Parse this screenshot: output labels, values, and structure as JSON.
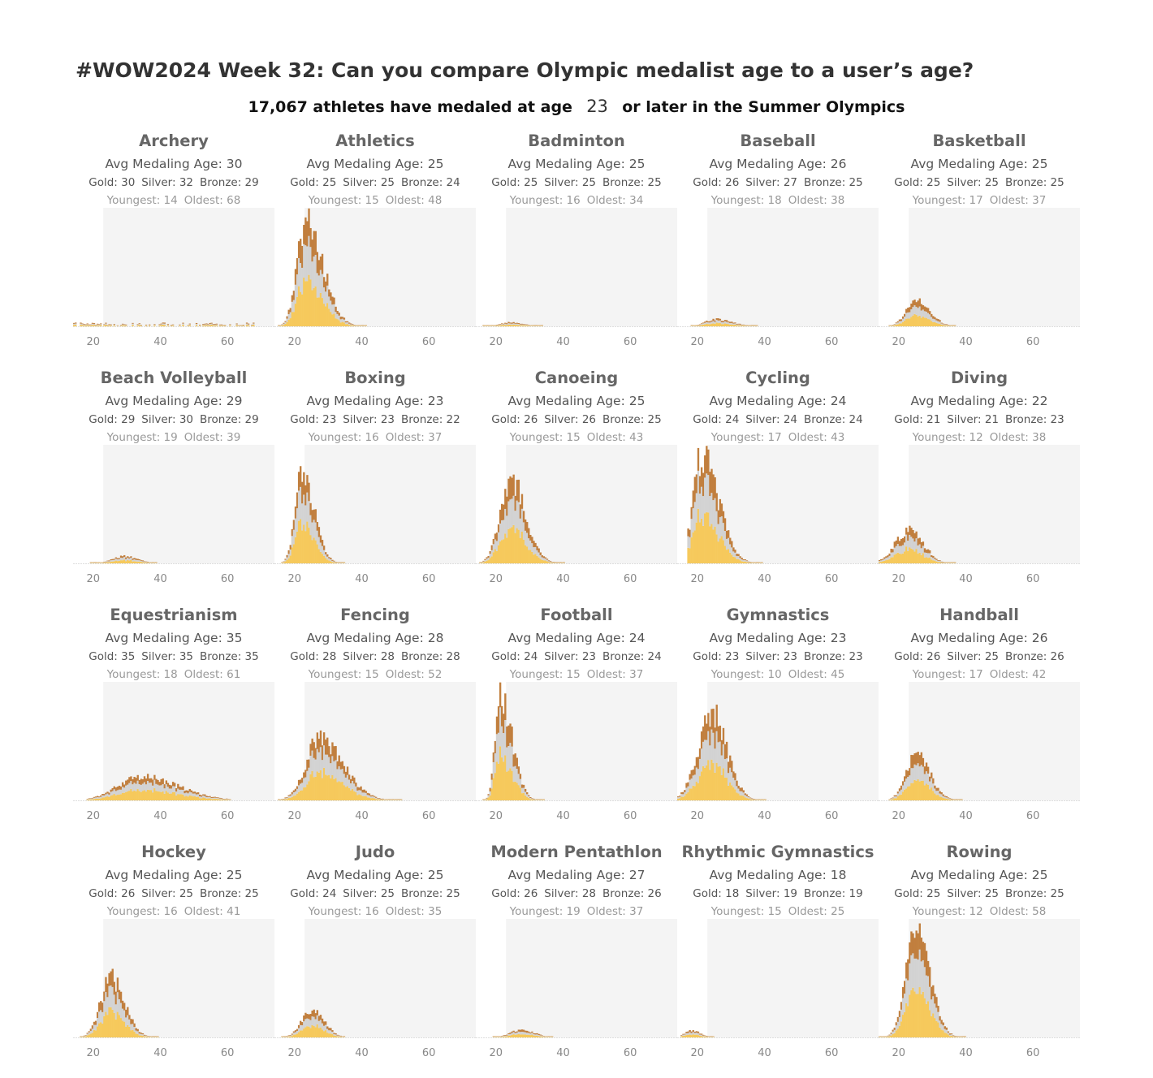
{
  "header": {
    "title": "#WOW2024 Week 32: Can you compare Olympic medalist age to a user’s age?",
    "subtitle_prefix": "17,067 athletes have medaled at age",
    "age_value": "23",
    "subtitle_suffix": "or later in the Summer Olympics"
  },
  "colors": {
    "gold": "#f6c95c",
    "silver": "#d3d3d3",
    "bronze": "#c17f3e",
    "shade": "#f4f4f4",
    "axis": "#dddddd"
  },
  "chart_data": {
    "type": "stacked-histogram-small-multiples",
    "x_axis": {
      "min": 14,
      "max": 74,
      "ticks": [
        "20",
        "40",
        "60"
      ]
    },
    "user_age": 23,
    "series": [
      "Gold",
      "Silver",
      "Bronze"
    ],
    "panels": [
      {
        "sport": "Archery",
        "avg": "Avg Medaling Age: 30",
        "gold": "Gold: 30",
        "silver": "Silver: 32",
        "bronze": "Bronze: 29",
        "youngest": "Youngest: 14",
        "oldest": "Oldest: 68",
        "shape": {
          "type": "flat",
          "from": 14,
          "to": 68,
          "level": 3
        }
      },
      {
        "sport": "Athletics",
        "avg": "Avg Medaling Age: 25",
        "gold": "Gold: 25",
        "silver": "Silver: 25",
        "bronze": "Bronze: 24",
        "youngest": "Youngest: 15",
        "oldest": "Oldest: 48",
        "shape": {
          "type": "skew",
          "peak": 23,
          "height": 135,
          "sl": 2.5,
          "sr": 5,
          "from": 15,
          "to": 48
        }
      },
      {
        "sport": "Badminton",
        "avg": "Avg Medaling Age: 25",
        "gold": "Gold: 25",
        "silver": "Silver: 25",
        "bronze": "Bronze: 25",
        "youngest": "Youngest: 16",
        "oldest": "Oldest: 34",
        "shape": {
          "type": "skew",
          "peak": 24,
          "height": 5,
          "sl": 3,
          "sr": 4,
          "from": 16,
          "to": 34
        }
      },
      {
        "sport": "Baseball",
        "avg": "Avg Medaling Age: 26",
        "gold": "Gold: 26",
        "silver": "Silver: 27",
        "bronze": "Bronze: 25",
        "youngest": "Youngest: 18",
        "oldest": "Oldest: 38",
        "shape": {
          "type": "skew",
          "peak": 25,
          "height": 9,
          "sl": 3,
          "sr": 5,
          "from": 18,
          "to": 38
        }
      },
      {
        "sport": "Basketball",
        "avg": "Avg Medaling Age: 25",
        "gold": "Gold: 25",
        "silver": "Silver: 25",
        "bronze": "Bronze: 25",
        "youngest": "Youngest: 17",
        "oldest": "Oldest: 37",
        "shape": {
          "type": "skew",
          "peak": 25,
          "height": 32,
          "sl": 3,
          "sr": 4,
          "from": 17,
          "to": 37
        }
      },
      {
        "sport": "Beach Volleyball",
        "avg": "Avg Medaling Age: 29",
        "gold": "Gold: 29",
        "silver": "Silver: 30",
        "bronze": "Bronze: 29",
        "youngest": "Youngest: 19",
        "oldest": "Oldest: 39",
        "shape": {
          "type": "skew",
          "peak": 29,
          "height": 9,
          "sl": 3.5,
          "sr": 4,
          "from": 19,
          "to": 39
        }
      },
      {
        "sport": "Boxing",
        "avg": "Avg Medaling Age: 23",
        "gold": "Gold: 23",
        "silver": "Silver: 23",
        "bronze": "Bronze: 22",
        "youngest": "Youngest: 16",
        "oldest": "Oldest: 37",
        "shape": {
          "type": "skew",
          "peak": 22,
          "height": 118,
          "sl": 2,
          "sr": 3.5,
          "from": 16,
          "to": 37
        }
      },
      {
        "sport": "Canoeing",
        "avg": "Avg Medaling Age: 25",
        "gold": "Gold: 26",
        "silver": "Silver: 26",
        "bronze": "Bronze: 25",
        "youngest": "Youngest: 15",
        "oldest": "Oldest: 43",
        "shape": {
          "type": "skew",
          "peak": 24,
          "height": 108,
          "sl": 3,
          "sr": 4.5,
          "from": 15,
          "to": 43
        }
      },
      {
        "sport": "Cycling",
        "avg": "Avg Medaling Age: 24",
        "gold": "Gold: 24",
        "silver": "Silver: 24",
        "bronze": "Bronze: 24",
        "youngest": "Youngest: 17",
        "oldest": "Oldest: 43",
        "shape": {
          "type": "skew",
          "peak": 21,
          "height": 138,
          "sl": 2.5,
          "sr": 5,
          "from": 17,
          "to": 43
        }
      },
      {
        "sport": "Diving",
        "avg": "Avg Medaling Age: 22",
        "gold": "Gold: 21",
        "silver": "Silver: 21",
        "bronze": "Bronze: 23",
        "youngest": "Youngest: 12",
        "oldest": "Oldest: 38",
        "shape": {
          "type": "skew",
          "peak": 23,
          "height": 45,
          "sl": 4,
          "sr": 4,
          "from": 14,
          "to": 38
        }
      },
      {
        "sport": "Equestrianism",
        "avg": "Avg Medaling Age: 35",
        "gold": "Gold: 35",
        "silver": "Silver: 35",
        "bronze": "Bronze: 35",
        "youngest": "Youngest: 18",
        "oldest": "Oldest: 61",
        "shape": {
          "type": "skew",
          "peak": 34,
          "height": 30,
          "sl": 7,
          "sr": 11,
          "from": 18,
          "to": 61
        }
      },
      {
        "sport": "Fencing",
        "avg": "Avg Medaling Age: 28",
        "gold": "Gold: 28",
        "silver": "Silver: 28",
        "bronze": "Bronze: 28",
        "youngest": "Youngest: 15",
        "oldest": "Oldest: 52",
        "shape": {
          "type": "skew",
          "peak": 27,
          "height": 78,
          "sl": 4,
          "sr": 7,
          "from": 15,
          "to": 52
        }
      },
      {
        "sport": "Football",
        "avg": "Avg Medaling Age: 24",
        "gold": "Gold: 24",
        "silver": "Silver: 23",
        "bronze": "Bronze: 24",
        "youngest": "Youngest: 15",
        "oldest": "Oldest: 37",
        "shape": {
          "type": "skew",
          "peak": 21,
          "height": 135,
          "sl": 1.5,
          "sr": 3.5,
          "from": 15,
          "to": 37
        }
      },
      {
        "sport": "Gymnastics",
        "avg": "Avg Medaling Age: 23",
        "gold": "Gold: 23",
        "silver": "Silver: 23",
        "bronze": "Bronze: 23",
        "youngest": "Youngest: 10",
        "oldest": "Oldest: 45",
        "shape": {
          "type": "skew",
          "peak": 24,
          "height": 112,
          "sl": 4,
          "sr": 4.5,
          "from": 14,
          "to": 45
        }
      },
      {
        "sport": "Handball",
        "avg": "Avg Medaling Age: 26",
        "gold": "Gold: 26",
        "silver": "Silver: 25",
        "bronze": "Bronze: 26",
        "youngest": "Youngest: 17",
        "oldest": "Oldest: 42",
        "shape": {
          "type": "skew",
          "peak": 25,
          "height": 60,
          "sl": 3,
          "sr": 4,
          "from": 17,
          "to": 42
        }
      },
      {
        "sport": "Hockey",
        "avg": "Avg Medaling Age: 25",
        "gold": "Gold: 26",
        "silver": "Silver: 25",
        "bronze": "Bronze: 25",
        "youngest": "Youngest: 16",
        "oldest": "Oldest: 41",
        "shape": {
          "type": "skew",
          "peak": 25,
          "height": 77,
          "sl": 3,
          "sr": 4,
          "from": 16,
          "to": 41
        }
      },
      {
        "sport": "Judo",
        "avg": "Avg Medaling Age: 25",
        "gold": "Gold: 24",
        "silver": "Silver: 25",
        "bronze": "Bronze: 25",
        "youngest": "Youngest: 16",
        "oldest": "Oldest: 35",
        "shape": {
          "type": "skew",
          "peak": 25,
          "height": 36,
          "sl": 3,
          "sr": 3.5,
          "from": 16,
          "to": 35
        }
      },
      {
        "sport": "Modern Pentathlon",
        "avg": "Avg Medaling Age: 27",
        "gold": "Gold: 26",
        "silver": "Silver: 28",
        "bronze": "Bronze: 26",
        "youngest": "Youngest: 19",
        "oldest": "Oldest: 37",
        "shape": {
          "type": "skew",
          "peak": 27,
          "height": 10,
          "sl": 3,
          "sr": 4,
          "from": 19,
          "to": 37
        }
      },
      {
        "sport": "Rhythmic Gymnastics",
        "avg": "Avg Medaling Age: 18",
        "gold": "Gold: 18",
        "silver": "Silver: 19",
        "bronze": "Bronze: 19",
        "youngest": "Youngest: 15",
        "oldest": "Oldest: 25",
        "shape": {
          "type": "skew",
          "peak": 18,
          "height": 9,
          "sl": 2,
          "sr": 2.5,
          "from": 15,
          "to": 25
        }
      },
      {
        "sport": "Rowing",
        "avg": "Avg Medaling Age: 25",
        "gold": "Gold: 25",
        "silver": "Silver: 25",
        "bronze": "Bronze: 25",
        "youngest": "Youngest: 12",
        "oldest": "Oldest: 58",
        "shape": {
          "type": "skew",
          "peak": 25,
          "height": 138,
          "sl": 3,
          "sr": 4,
          "from": 14,
          "to": 58
        }
      }
    ]
  }
}
